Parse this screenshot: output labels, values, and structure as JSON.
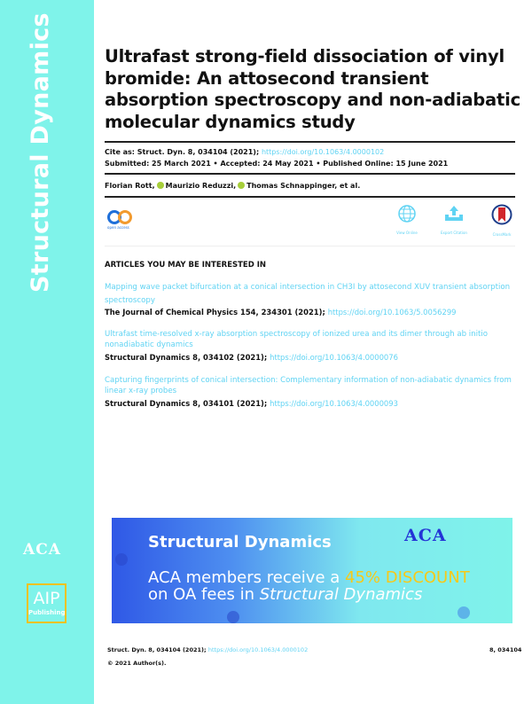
{
  "sidebar": {
    "journal": "Structural Dynamics",
    "aca_logo": "ACA",
    "aip_logo_top": "AIP",
    "aip_logo_bottom": "Publishing",
    "color": "#7ff3ea"
  },
  "article": {
    "title": "Ultrafast strong-field dissociation of vinyl bromide: An attosecond transient absorption spectroscopy and non-adiabatic molecular dynamics study",
    "cite_label": "Cite as: Struct. Dyn. 8, 034104 (2021);",
    "doi": "https://doi.org/10.1063/4.0000102",
    "dates": "Submitted: 25 March 2021 • Accepted: 24 May 2021 • Published Online: 15 June 2021",
    "authors": [
      "Florian Rott,",
      "Maurizio Reduzzi,",
      "Thomas Schnappinger, et al."
    ]
  },
  "toolbar": {
    "open_access_label": "open access",
    "view_online": "View Online",
    "export_citation": "Export Citation",
    "crossmark": "CrossMark"
  },
  "related": {
    "heading": "ARTICLES YOU MAY BE INTERESTED IN",
    "items": [
      {
        "title": "Mapping wave packet bifurcation at a conical intersection in CH3I by attosecond XUV transient absorption spectroscopy",
        "citation": "The Journal of Chemical Physics 154, 234301 (2021);",
        "doi": "https://doi.org/10.1063/5.0056299"
      },
      {
        "title": "Ultrafast time-resolved x-ray absorption spectroscopy of ionized urea and its dimer through ab initio nonadiabatic dynamics",
        "citation": "Structural Dynamics 8, 034102 (2021);",
        "doi": "https://doi.org/10.1063/4.0000076"
      },
      {
        "title": "Capturing fingerprints of conical intersection: Complementary information of non-adiabatic dynamics from linear x-ray probes",
        "citation": "Structural Dynamics 8, 034101 (2021);",
        "doi": "https://doi.org/10.1063/4.0000093"
      }
    ]
  },
  "banner": {
    "title": "Structural Dynamics",
    "logo": "ACA",
    "line1_pre": "ACA members receive a ",
    "discount": "45% DISCOUNT",
    "line2_pre": "on OA fees in ",
    "line2_em": "Structural Dynamics"
  },
  "footer": {
    "cite": "Struct. Dyn. 8, 034104 (2021);",
    "doi": "https://doi.org/10.1063/4.0000102",
    "page": "8, 034104",
    "copyright": "© 2021 Author(s)."
  }
}
